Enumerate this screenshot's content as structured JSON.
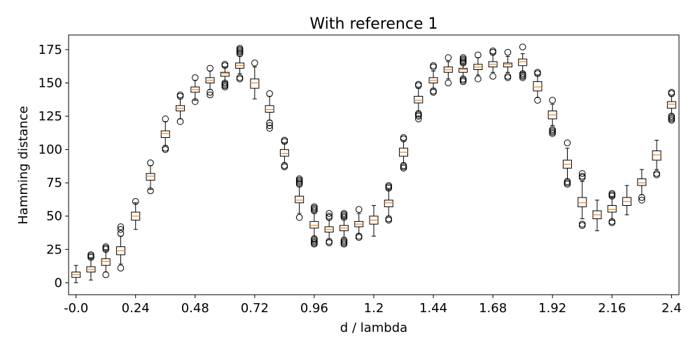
{
  "chart_data": {
    "type": "box",
    "title": "With reference 1",
    "xlabel": "d / lambda",
    "ylabel": "Hamming distance",
    "xlim": [
      -0.03,
      2.43
    ],
    "ylim": [
      -9,
      186
    ],
    "xticks": [
      {
        "value": 0.0,
        "label": "-0.0"
      },
      {
        "value": 0.24,
        "label": "0.24"
      },
      {
        "value": 0.48,
        "label": "0.48"
      },
      {
        "value": 0.72,
        "label": "0.72"
      },
      {
        "value": 0.96,
        "label": "0.96"
      },
      {
        "value": 1.2,
        "label": "1.2"
      },
      {
        "value": 1.44,
        "label": "1.44"
      },
      {
        "value": 1.68,
        "label": "1.68"
      },
      {
        "value": 1.92,
        "label": "1.92"
      },
      {
        "value": 2.16,
        "label": "2.16"
      },
      {
        "value": 2.4,
        "label": "2.4"
      }
    ],
    "yticks": [
      {
        "value": 0,
        "label": "0"
      },
      {
        "value": 25,
        "label": "25"
      },
      {
        "value": 50,
        "label": "50"
      },
      {
        "value": 75,
        "label": "75"
      },
      {
        "value": 100,
        "label": "100"
      },
      {
        "value": 125,
        "label": "125"
      },
      {
        "value": 150,
        "label": "150"
      },
      {
        "value": 175,
        "label": "175"
      }
    ],
    "colors": {
      "box": "#000000",
      "median": "#ff7f0e",
      "flier": "#000000"
    },
    "boxes": [
      {
        "x": 0.0,
        "q1": 4,
        "median": 6,
        "q3": 8,
        "low": 0,
        "high": 13,
        "fliers": []
      },
      {
        "x": 0.06,
        "q1": 8,
        "median": 10,
        "q3": 12,
        "low": 2,
        "high": 18,
        "fliers": [
          19,
          20,
          21
        ]
      },
      {
        "x": 0.12,
        "q1": 13,
        "median": 16,
        "q3": 18,
        "low": 8,
        "high": 24,
        "fliers": [
          6,
          25,
          26,
          27
        ]
      },
      {
        "x": 0.18,
        "q1": 21,
        "median": 24,
        "q3": 27,
        "low": 14,
        "high": 35,
        "fliers": [
          11,
          37,
          40,
          42
        ]
      },
      {
        "x": 0.24,
        "q1": 47,
        "median": 50,
        "q3": 53,
        "low": 40,
        "high": 60,
        "fliers": [
          61
        ]
      },
      {
        "x": 0.3,
        "q1": 77,
        "median": 80,
        "q3": 82,
        "low": 70,
        "high": 88,
        "fliers": [
          69,
          90
        ]
      },
      {
        "x": 0.36,
        "q1": 109,
        "median": 112,
        "q3": 114,
        "low": 103,
        "high": 121,
        "fliers": [
          100,
          101,
          123
        ]
      },
      {
        "x": 0.42,
        "q1": 129,
        "median": 131,
        "q3": 133,
        "low": 123,
        "high": 138,
        "fliers": [
          121,
          140,
          141
        ]
      },
      {
        "x": 0.48,
        "q1": 143,
        "median": 145,
        "q3": 147,
        "low": 137,
        "high": 152,
        "fliers": [
          136,
          154
        ]
      },
      {
        "x": 0.54,
        "q1": 150,
        "median": 152,
        "q3": 154,
        "low": 145,
        "high": 159,
        "fliers": [
          141,
          143,
          161
        ]
      },
      {
        "x": 0.6,
        "q1": 155,
        "median": 157,
        "q3": 158,
        "low": 151,
        "high": 162,
        "fliers": [
          147,
          148,
          149,
          150,
          163,
          164
        ]
      },
      {
        "x": 0.66,
        "q1": 161,
        "median": 163,
        "q3": 165,
        "low": 157,
        "high": 170,
        "fliers": [
          153,
          154,
          172,
          173,
          174,
          175,
          176
        ]
      },
      {
        "x": 0.72,
        "q1": 146,
        "median": 150,
        "q3": 153,
        "low": 138,
        "high": 162,
        "fliers": [
          165
        ]
      },
      {
        "x": 0.78,
        "q1": 128,
        "median": 130,
        "q3": 133,
        "low": 122,
        "high": 140,
        "fliers": [
          116,
          118,
          120,
          142
        ]
      },
      {
        "x": 0.84,
        "q1": 95,
        "median": 97,
        "q3": 100,
        "low": 90,
        "high": 105,
        "fliers": [
          87,
          88,
          106,
          107
        ]
      },
      {
        "x": 0.9,
        "q1": 60,
        "median": 62,
        "q3": 65,
        "low": 52,
        "high": 72,
        "fliers": [
          49,
          74,
          75,
          76,
          77,
          78
        ]
      },
      {
        "x": 0.96,
        "q1": 41,
        "median": 43,
        "q3": 46,
        "low": 35,
        "high": 52,
        "fliers": [
          29,
          30,
          31,
          32,
          33,
          54,
          55,
          56,
          57
        ]
      },
      {
        "x": 1.02,
        "q1": 38,
        "median": 40,
        "q3": 42,
        "low": 33,
        "high": 47,
        "fliers": [
          30,
          31,
          49,
          50,
          52
        ]
      },
      {
        "x": 1.08,
        "q1": 39,
        "median": 41,
        "q3": 43,
        "low": 34,
        "high": 48,
        "fliers": [
          29,
          30,
          31,
          32,
          49,
          50,
          51,
          52
        ]
      },
      {
        "x": 1.14,
        "q1": 42,
        "median": 44,
        "q3": 46,
        "low": 37,
        "high": 52,
        "fliers": [
          34,
          35,
          55
        ]
      },
      {
        "x": 1.2,
        "q1": 44,
        "median": 47,
        "q3": 50,
        "low": 35,
        "high": 58,
        "fliers": []
      },
      {
        "x": 1.26,
        "q1": 57,
        "median": 60,
        "q3": 62,
        "low": 50,
        "high": 70,
        "fliers": [
          47,
          48,
          71,
          72,
          73
        ]
      },
      {
        "x": 1.32,
        "q1": 95,
        "median": 98,
        "q3": 101,
        "low": 90,
        "high": 106,
        "fliers": [
          86,
          87,
          88,
          108,
          109
        ]
      },
      {
        "x": 1.38,
        "q1": 135,
        "median": 137,
        "q3": 140,
        "low": 129,
        "high": 146,
        "fliers": [
          123,
          125,
          126,
          127,
          148,
          149
        ]
      },
      {
        "x": 1.44,
        "q1": 150,
        "median": 152,
        "q3": 154,
        "low": 146,
        "high": 159,
        "fliers": [
          143,
          144,
          162,
          163
        ]
      },
      {
        "x": 1.5,
        "q1": 158,
        "median": 160,
        "q3": 162,
        "low": 153,
        "high": 166,
        "fliers": [
          150,
          169
        ]
      },
      {
        "x": 1.56,
        "q1": 158,
        "median": 160,
        "q3": 161,
        "low": 155,
        "high": 164,
        "fliers": [
          151,
          152,
          153,
          165,
          166,
          167,
          168,
          169
        ]
      },
      {
        "x": 1.62,
        "q1": 160,
        "median": 162,
        "q3": 164,
        "low": 156,
        "high": 169,
        "fliers": [
          153,
          171
        ]
      },
      {
        "x": 1.68,
        "q1": 162,
        "median": 164,
        "q3": 166,
        "low": 158,
        "high": 171,
        "fliers": [
          155,
          173,
          174
        ]
      },
      {
        "x": 1.74,
        "q1": 162,
        "median": 164,
        "q3": 165,
        "low": 158,
        "high": 170,
        "fliers": [
          154,
          155,
          173
        ]
      },
      {
        "x": 1.8,
        "q1": 163,
        "median": 166,
        "q3": 168,
        "low": 158,
        "high": 172,
        "fliers": [
          154,
          155,
          156,
          157,
          177
        ]
      },
      {
        "x": 1.86,
        "q1": 144,
        "median": 147,
        "q3": 151,
        "low": 139,
        "high": 156,
        "fliers": [
          137,
          157,
          158
        ]
      },
      {
        "x": 1.92,
        "q1": 123,
        "median": 126,
        "q3": 129,
        "low": 118,
        "high": 134,
        "fliers": [
          112,
          113,
          114,
          115,
          137
        ]
      },
      {
        "x": 1.98,
        "q1": 86,
        "median": 89,
        "q3": 92,
        "low": 78,
        "high": 101,
        "fliers": [
          74,
          75,
          76,
          105
        ]
      },
      {
        "x": 2.04,
        "q1": 57,
        "median": 60,
        "q3": 64,
        "low": 48,
        "high": 76,
        "fliers": [
          43,
          44,
          79,
          80,
          82
        ]
      },
      {
        "x": 2.1,
        "q1": 48,
        "median": 51,
        "q3": 54,
        "low": 39,
        "high": 62,
        "fliers": []
      },
      {
        "x": 2.16,
        "q1": 53,
        "median": 55,
        "q3": 58,
        "low": 47,
        "high": 64,
        "fliers": [
          45,
          46,
          65,
          66,
          67
        ]
      },
      {
        "x": 2.22,
        "q1": 58,
        "median": 61,
        "q3": 64,
        "low": 51,
        "high": 73,
        "fliers": []
      },
      {
        "x": 2.28,
        "q1": 73,
        "median": 75,
        "q3": 78,
        "low": 66,
        "high": 85,
        "fliers": [
          62,
          64
        ]
      },
      {
        "x": 2.34,
        "q1": 92,
        "median": 96,
        "q3": 99,
        "low": 85,
        "high": 107,
        "fliers": [
          81,
          82
        ]
      },
      {
        "x": 2.4,
        "q1": 131,
        "median": 134,
        "q3": 136,
        "low": 127,
        "high": 140,
        "fliers": [
          122,
          123,
          124,
          125,
          142,
          143
        ]
      }
    ]
  }
}
